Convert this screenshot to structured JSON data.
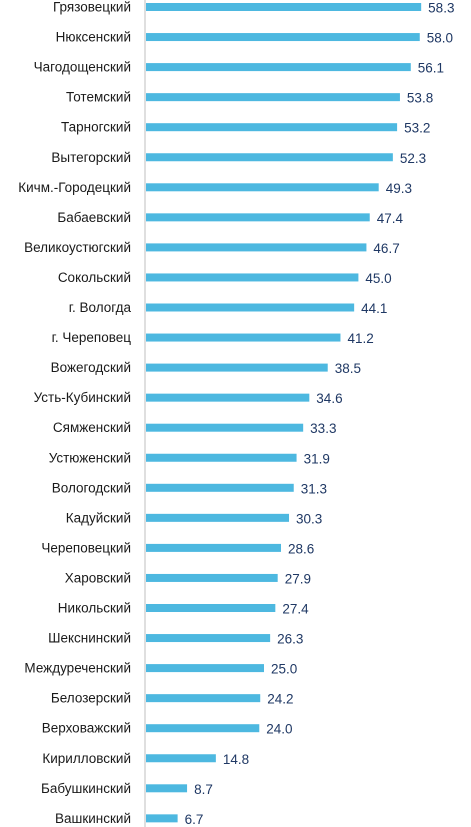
{
  "chart_data": {
    "type": "bar",
    "orientation": "horizontal",
    "categories": [
      "Грязовецкий",
      "Нюксенский",
      "Чагодощенский",
      "Тотемский",
      "Тарногский",
      "Вытегорский",
      "Кичм.-Городецкий",
      "Бабаевский",
      "Великоустюгский",
      "Сокольский",
      "г. Вологда",
      "г. Череповец",
      "Вожегодский",
      "Усть-Кубинский",
      "Сямженский",
      "Устюженский",
      "Вологодский",
      "Кадуйский",
      "Череповецкий",
      "Харовский",
      "Никольский",
      "Шекснинский",
      "Междуреченский",
      "Белозерский",
      "Верховажский",
      "Кирилловский",
      "Бабушкинский",
      "Вашкинский"
    ],
    "values": [
      58.3,
      58.0,
      56.1,
      53.8,
      53.2,
      52.3,
      49.3,
      47.4,
      46.7,
      45.0,
      44.1,
      41.2,
      38.5,
      34.6,
      33.3,
      31.9,
      31.3,
      30.3,
      28.6,
      27.9,
      27.4,
      26.3,
      25.0,
      24.2,
      24.0,
      14.8,
      8.7,
      6.7
    ],
    "value_labels": [
      "58.3",
      "58.0",
      "56.1",
      "53.8",
      "53.2",
      "52.3",
      "49.3",
      "47.4",
      "46.7",
      "45.0",
      "44.1",
      "41.2",
      "38.5",
      "34.6",
      "33.3",
      "31.9",
      "31.3",
      "30.3",
      "28.6",
      "27.9",
      "27.4",
      "26.3",
      "25.0",
      "24.2",
      "24.0",
      "14.8",
      "8.7",
      "6.7"
    ],
    "bar_color": "#4db8e0",
    "value_label_color": "#1f3864",
    "grid": false,
    "legend": "none"
  }
}
